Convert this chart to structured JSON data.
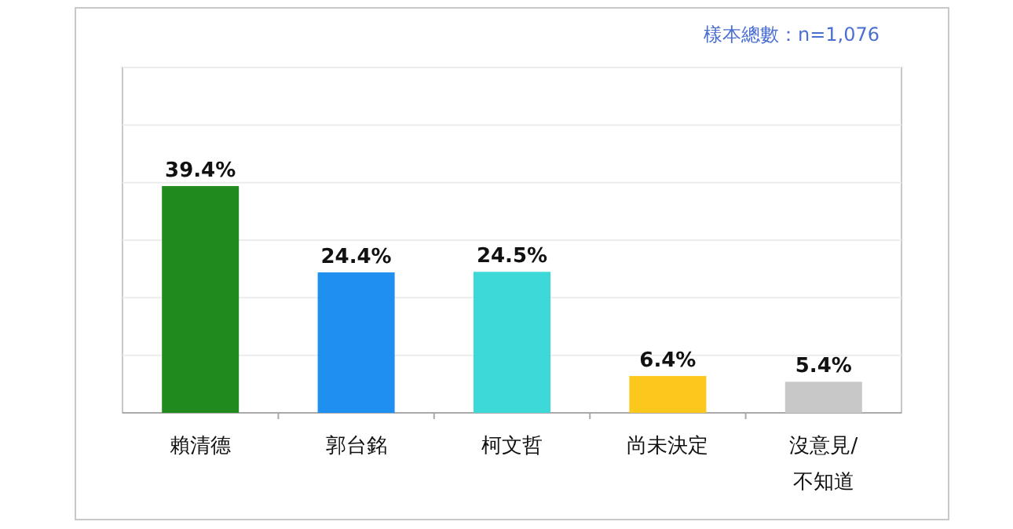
{
  "chart_data": {
    "type": "bar",
    "categories": [
      "賴清德",
      "郭台銘",
      "柯文哲",
      "尚未決定",
      "沒意見/不知道"
    ],
    "values": [
      39.4,
      24.4,
      24.5,
      6.4,
      5.4
    ],
    "value_labels": [
      "39.4%",
      "24.4%",
      "24.5%",
      "6.4%",
      "5.4%"
    ],
    "colors": [
      "#218a1f",
      "#1f8ff0",
      "#3dd8d8",
      "#fcc81c",
      "#c8c8c8"
    ],
    "ylim": [
      0,
      60
    ],
    "yticks": [
      {
        "value": 0,
        "label": null
      },
      {
        "value": 10,
        "label": null
      },
      {
        "value": 20,
        "label": null
      },
      {
        "value": 30,
        "label": null
      },
      {
        "value": 40,
        "label": null
      },
      {
        "value": 50,
        "label": null
      },
      {
        "value": 60,
        "label": null
      }
    ],
    "grid": "y",
    "tick_labels": "x",
    "annotations": [
      "樣本總數：n=1,076"
    ]
  }
}
